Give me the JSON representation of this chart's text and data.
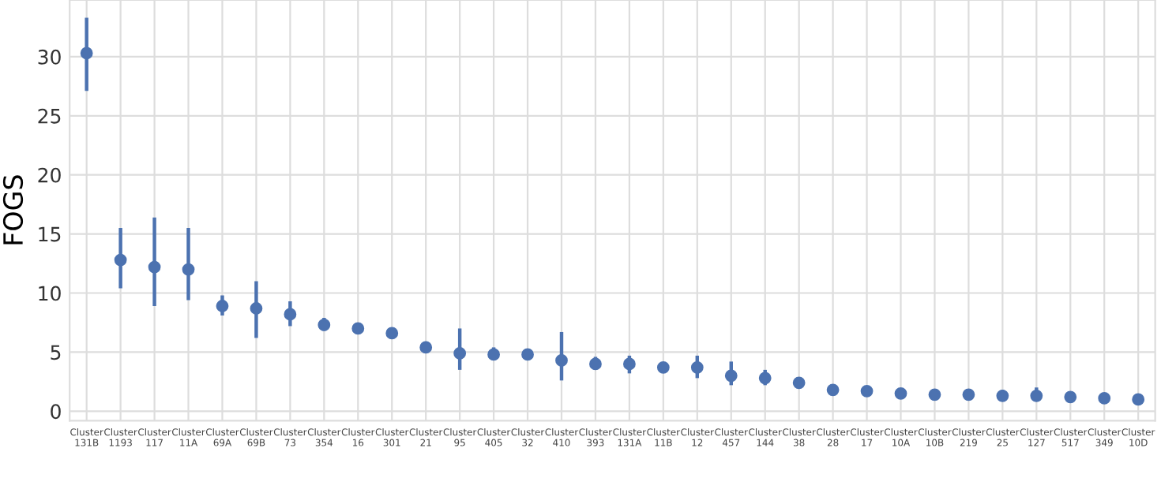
{
  "chart_data": {
    "type": "scatter",
    "ylabel": "FOGS",
    "grid": true,
    "marker": "circle",
    "ylim": [
      -0.8,
      34.8
    ],
    "yticks": [
      0,
      5,
      10,
      15,
      20,
      25,
      30
    ],
    "categories": [
      "Cluster\n131B",
      "Cluster\n1193",
      "Cluster\n117",
      "Cluster\n11A",
      "Cluster\n69A",
      "Cluster\n69B",
      "Cluster\n73",
      "Cluster\n354",
      "Cluster\n16",
      "Cluster\n301",
      "Cluster\n21",
      "Cluster\n95",
      "Cluster\n405",
      "Cluster\n32",
      "Cluster\n410",
      "Cluster\n393",
      "Cluster\n131A",
      "Cluster\n11B",
      "Cluster\n12",
      "Cluster\n457",
      "Cluster\n144",
      "Cluster\n38",
      "Cluster\n28",
      "Cluster\n17",
      "Cluster\n10A",
      "Cluster\n10B",
      "Cluster\n219",
      "Cluster\n25",
      "Cluster\n127",
      "Cluster\n517",
      "Cluster\n349",
      "Cluster\n10D"
    ],
    "series": [
      {
        "color": "#4c72b0",
        "values": [
          30.3,
          12.8,
          12.2,
          12.0,
          8.9,
          8.7,
          8.2,
          7.3,
          7.0,
          6.6,
          5.4,
          4.9,
          4.8,
          4.8,
          4.3,
          4.0,
          4.0,
          3.7,
          3.7,
          3.0,
          2.8,
          2.4,
          1.8,
          1.7,
          1.5,
          1.4,
          1.4,
          1.3,
          1.3,
          1.2,
          1.1,
          1.0
        ],
        "errors": [
          [
            27.1,
            33.3
          ],
          [
            10.4,
            15.5
          ],
          [
            8.9,
            16.4
          ],
          [
            9.4,
            15.5
          ],
          [
            8.1,
            9.8
          ],
          [
            6.2,
            11.0
          ],
          [
            7.2,
            9.3
          ],
          [
            6.8,
            7.9
          ],
          null,
          null,
          [
            5.0,
            5.9
          ],
          [
            3.5,
            7.0
          ],
          [
            4.3,
            5.4
          ],
          null,
          [
            2.6,
            6.7
          ],
          [
            3.5,
            4.6
          ],
          [
            3.2,
            4.7
          ],
          null,
          [
            2.8,
            4.7
          ],
          [
            2.2,
            4.2
          ],
          [
            2.2,
            3.5
          ],
          [
            2.0,
            2.7
          ],
          null,
          [
            1.3,
            2.0
          ],
          null,
          null,
          [
            1.0,
            1.7
          ],
          [
            0.9,
            1.8
          ],
          [
            0.9,
            2.0
          ],
          [
            0.9,
            1.6
          ],
          null,
          null
        ]
      }
    ]
  }
}
